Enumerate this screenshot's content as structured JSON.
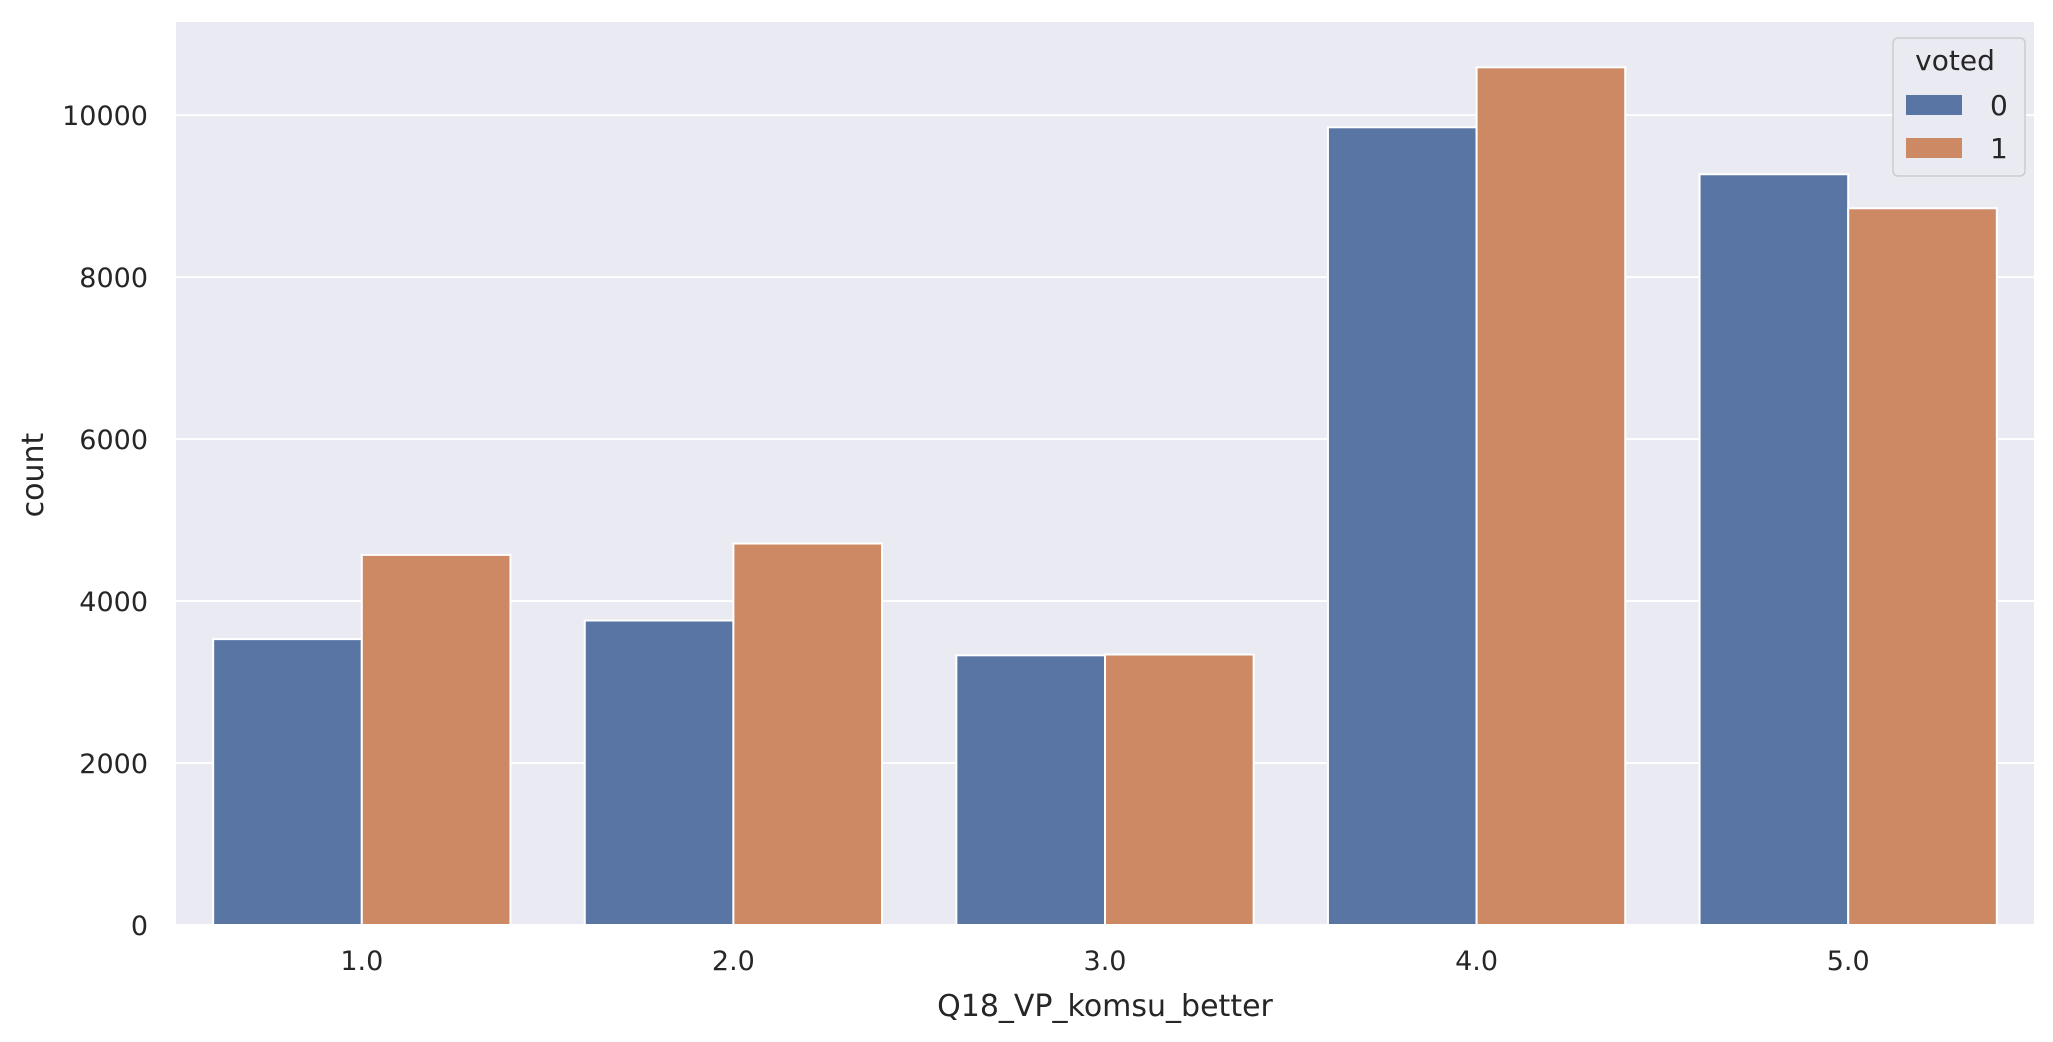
{
  "chart_data": {
    "type": "bar",
    "xlabel": "Q18_VP_komsu_better",
    "ylabel": "count",
    "categories": [
      "1.0",
      "2.0",
      "3.0",
      "4.0",
      "5.0"
    ],
    "series": [
      {
        "name": "0",
        "color": "#5875a4",
        "values": [
          3530,
          3760,
          3330,
          9850,
          9270
        ]
      },
      {
        "name": "1",
        "color": "#cc8963",
        "values": [
          4570,
          4710,
          3340,
          10590,
          8850
        ]
      }
    ],
    "ylim": [
      0,
      11150
    ],
    "yticks": [
      0,
      2000,
      4000,
      6000,
      8000,
      10000
    ],
    "grid": true,
    "background": "#eaeaf2",
    "legend": {
      "title": "voted",
      "position": "top-right"
    }
  }
}
